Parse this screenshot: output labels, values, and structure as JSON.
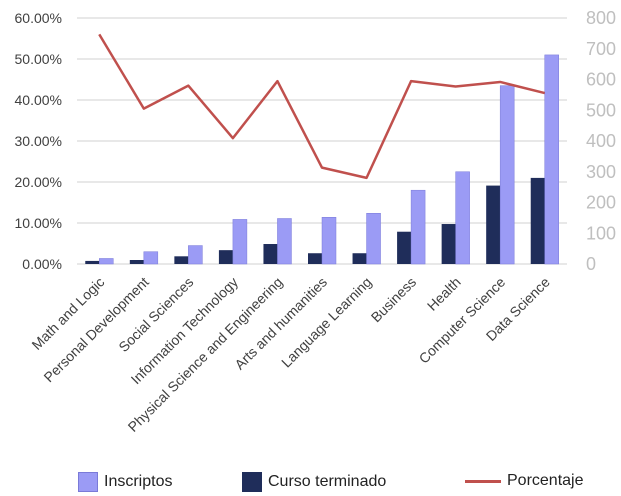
{
  "chart_data": {
    "type": "bar",
    "categories": [
      "Math and Logic",
      "Personal Development",
      "Social Sciences",
      "Information Technology",
      "Physical Science and Engineering",
      "Arts and humanities",
      "Language Learning",
      "Business",
      "Health",
      "Computer Science",
      "Data Science"
    ],
    "series": [
      {
        "name": "Inscriptos",
        "axis": "right",
        "kind": "bar",
        "color": "#9b9bf5",
        "values": [
          18,
          40,
          60,
          145,
          148,
          152,
          165,
          240,
          300,
          580,
          680
        ]
      },
      {
        "name": "Curso terminado",
        "axis": "right",
        "kind": "bar",
        "color": "#1f2d5a",
        "values": [
          10,
          13,
          25,
          45,
          65,
          35,
          35,
          105,
          130,
          255,
          280
        ]
      },
      {
        "name": "Porcentaje",
        "axis": "left",
        "kind": "line",
        "color": "#c0504d",
        "values": [
          0.56,
          0.379,
          0.435,
          0.307,
          0.446,
          0.235,
          0.21,
          0.446,
          0.433,
          0.444,
          0.417
        ]
      }
    ],
    "y_left": {
      "ticks": [
        "0.00%",
        "10.00%",
        "20.00%",
        "30.00%",
        "40.00%",
        "50.00%",
        "60.00%"
      ],
      "range": [
        0,
        0.6
      ]
    },
    "y_right": {
      "ticks": [
        "0",
        "100",
        "200",
        "300",
        "400",
        "500",
        "600",
        "700",
        "800"
      ],
      "range": [
        0,
        800
      ]
    },
    "grid": true,
    "legend_position": "bottom"
  }
}
